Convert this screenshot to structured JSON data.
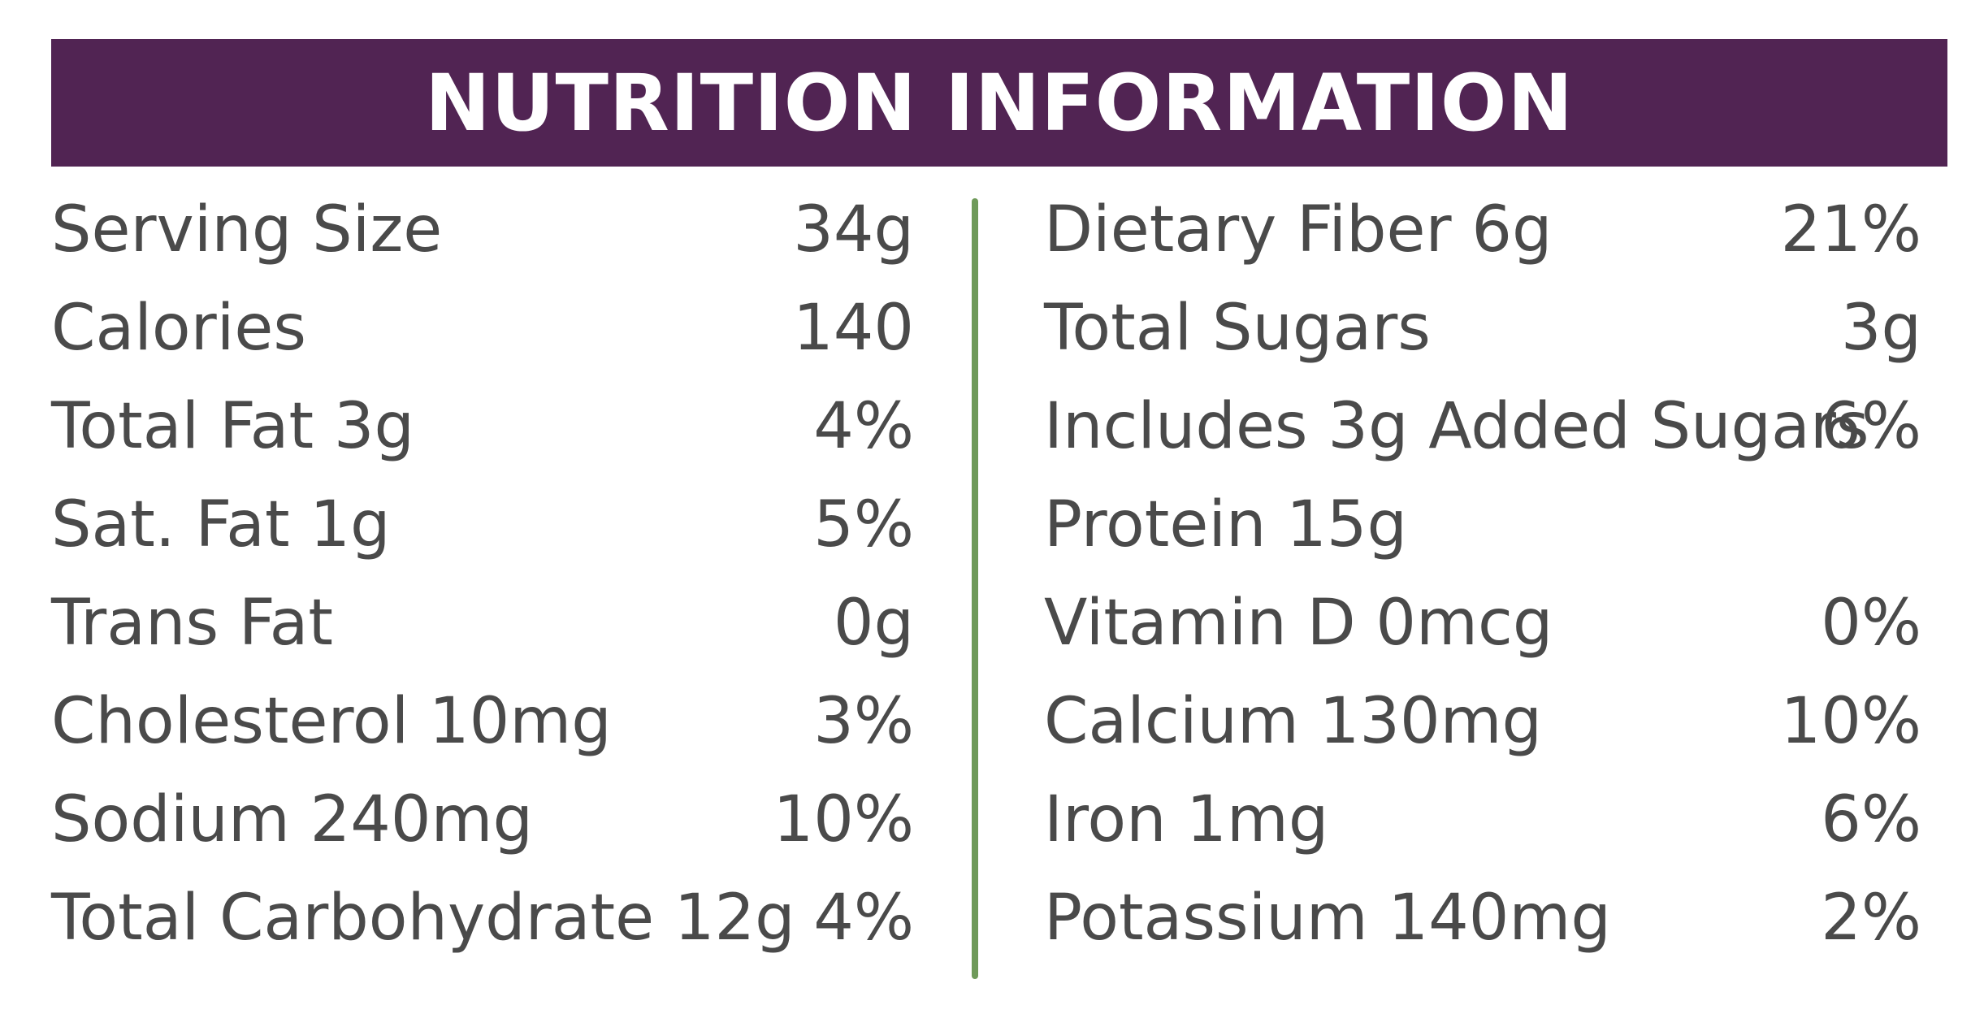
{
  "header": {
    "title": "NUTRITION INFORMATION"
  },
  "colors": {
    "header_background": "#512453",
    "header_text": "#ffffff",
    "body_text": "#4a4a4a",
    "divider": "#6f9a5a"
  },
  "left_column": [
    {
      "label": "Serving Size",
      "value": "34g"
    },
    {
      "label": "Calories",
      "value": "140"
    },
    {
      "label": "Total Fat 3g",
      "value": "4%"
    },
    {
      "label": "Sat. Fat 1g",
      "value": "5%"
    },
    {
      "label": "Trans Fat",
      "value": "0g"
    },
    {
      "label": "Cholesterol 10mg",
      "value": "3%"
    },
    {
      "label": "Sodium 240mg",
      "value": "10%"
    },
    {
      "label": "Total Carbohydrate 12g",
      "value": "4%"
    }
  ],
  "right_column": [
    {
      "label": "Dietary Fiber 6g",
      "value": "21%"
    },
    {
      "label": "Total Sugars",
      "value": "3g"
    },
    {
      "label": "Includes 3g Added Sugars",
      "value": "6%"
    },
    {
      "label": "Protein 15g",
      "value": ""
    },
    {
      "label": "Vitamin D 0mcg",
      "value": "0%"
    },
    {
      "label": "Calcium 130mg",
      "value": "10%"
    },
    {
      "label": "Iron 1mg",
      "value": "6%"
    },
    {
      "label": "Potassium 140mg",
      "value": "2%"
    }
  ]
}
